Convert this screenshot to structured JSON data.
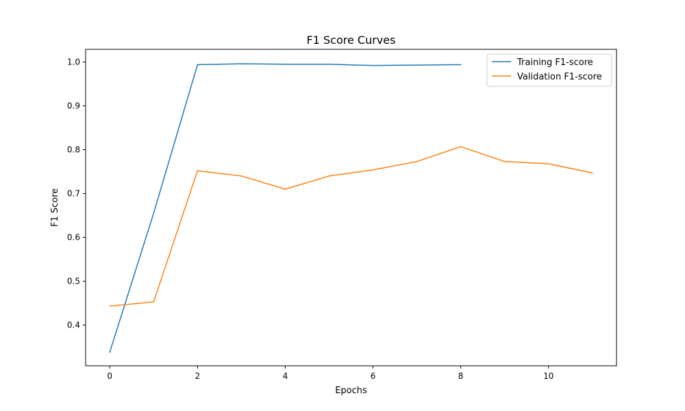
{
  "chart_data": {
    "type": "line",
    "title": "F1 Score Curves",
    "xlabel": "Epochs",
    "ylabel": "F1 Score",
    "xlim": [
      -0.55,
      11.55
    ],
    "ylim": [
      0.307,
      1.029
    ],
    "x_ticks": [
      0,
      2,
      4,
      6,
      8,
      10
    ],
    "y_ticks": [
      0.4,
      0.5,
      0.6,
      0.7,
      0.8,
      0.9,
      1.0
    ],
    "x_tick_labels": [
      "0",
      "2",
      "4",
      "6",
      "8",
      "10"
    ],
    "y_tick_labels": [
      "0.4",
      "0.5",
      "0.6",
      "0.7",
      "0.8",
      "0.9",
      "1.0"
    ],
    "grid": false,
    "legend": "top-right",
    "series": [
      {
        "name": "Training F1-score",
        "color": "#1f77b4",
        "x": [
          0,
          1,
          2,
          3,
          4,
          5,
          6,
          7,
          8
        ],
        "values": [
          0.338,
          0.655,
          0.994,
          0.996,
          0.995,
          0.995,
          0.992,
          0.993,
          0.994
        ]
      },
      {
        "name": "Validation F1-score",
        "color": "#ff7f0e",
        "x": [
          0,
          1,
          2,
          3,
          4,
          5,
          6,
          7,
          8,
          9,
          10,
          11
        ],
        "values": [
          0.443,
          0.453,
          0.752,
          0.74,
          0.71,
          0.74,
          0.754,
          0.773,
          0.807,
          0.773,
          0.768,
          0.747
        ]
      }
    ]
  }
}
